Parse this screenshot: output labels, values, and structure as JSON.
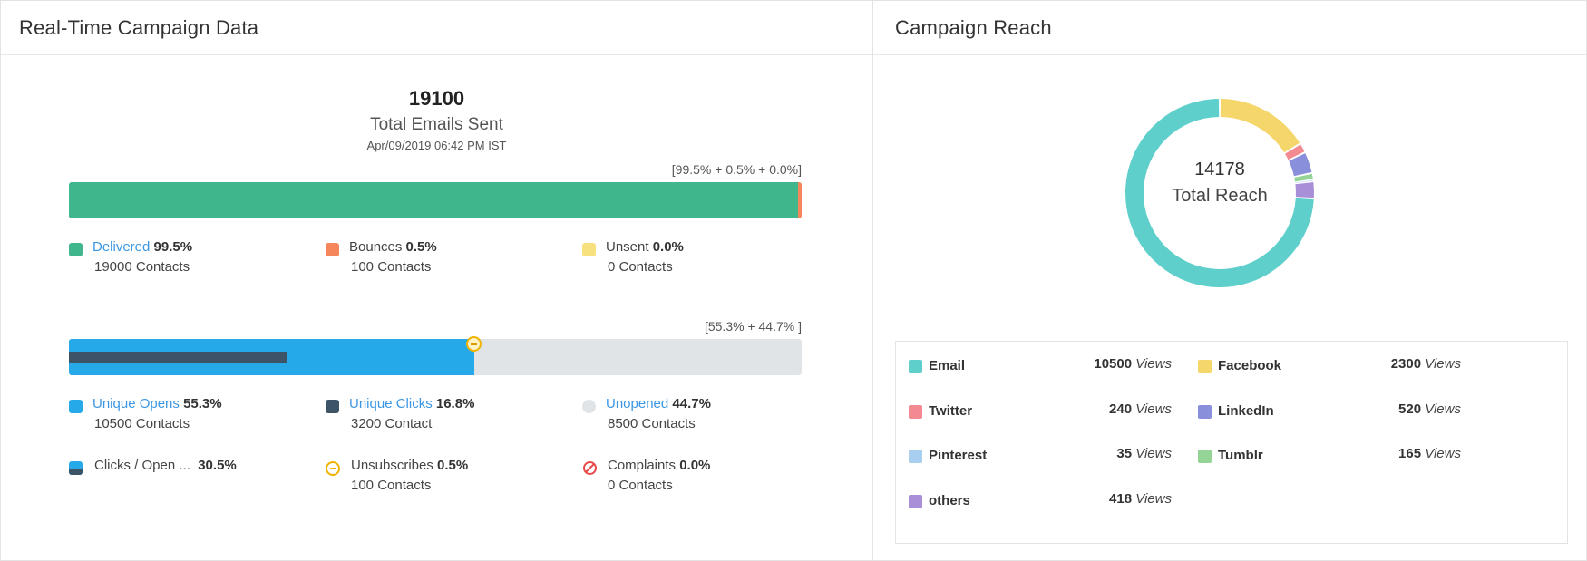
{
  "campaign": {
    "title": "Real-Time Campaign Data",
    "total_sent": "19100",
    "total_label": "Total Emails Sent",
    "date": "Apr/09/2019 06:42 PM IST",
    "delivery": {
      "caption": "[99.5% + 0.5% + 0.0%]",
      "delivered_pct": 99.5,
      "bounces_pct": 0.5,
      "unsent_pct": 0.0,
      "delivered": {
        "label": "Delivered",
        "pct": "99.5%",
        "sub": "19000 Contacts"
      },
      "bounces": {
        "label": "Bounces",
        "pct": "0.5%",
        "sub": "100 Contacts"
      },
      "unsent": {
        "label": "Unsent",
        "pct": "0.0%",
        "sub": "0 Contacts"
      }
    },
    "engagement": {
      "caption": "[55.3% + 44.7% ]",
      "opens_pct": 55.3,
      "clicks_pct": 16.8,
      "opens": {
        "label": "Unique Opens",
        "pct": "55.3%",
        "sub": "10500 Contacts"
      },
      "clicks": {
        "label": "Unique Clicks",
        "pct": "16.8%",
        "sub": "3200 Contact"
      },
      "unopened": {
        "label": "Unopened",
        "pct": "44.7%",
        "sub": "8500 Contacts"
      },
      "clicks_open": {
        "label": "Clicks / Open ...",
        "pct": "30.5%"
      },
      "unsubscribes": {
        "label": "Unsubscribes",
        "pct": "0.5%",
        "sub": "100 Contacts"
      },
      "complaints": {
        "label": "Complaints",
        "pct": "0.0%",
        "sub": "0 Contacts"
      }
    },
    "colors": {
      "delivered": "#3fb68b",
      "bounces": "#f5855b",
      "unsent": "#f7e07e",
      "opens": "#25a9e8",
      "clicks": "#3d5466",
      "unopened": "#e1e4e7",
      "complaints": "#e84a4a"
    }
  },
  "reach": {
    "title": "Campaign Reach",
    "total": "14178",
    "total_label": "Total Reach",
    "views_word": "Views",
    "channels": [
      {
        "name": "Email",
        "value": "10500",
        "num": 10500,
        "color": "#5ecfcb"
      },
      {
        "name": "Facebook",
        "value": "2300",
        "num": 2300,
        "color": "#f5d66b"
      },
      {
        "name": "Twitter",
        "value": "240",
        "num": 240,
        "color": "#f38a92"
      },
      {
        "name": "LinkedIn",
        "value": "520",
        "num": 520,
        "color": "#8a8fdc"
      },
      {
        "name": "Pinterest",
        "value": "35",
        "num": 35,
        "color": "#a9cff0"
      },
      {
        "name": "Tumblr",
        "value": "165",
        "num": 165,
        "color": "#94d496"
      },
      {
        "name": "others",
        "value": "418",
        "num": 418,
        "color": "#a98ed8"
      }
    ]
  }
}
